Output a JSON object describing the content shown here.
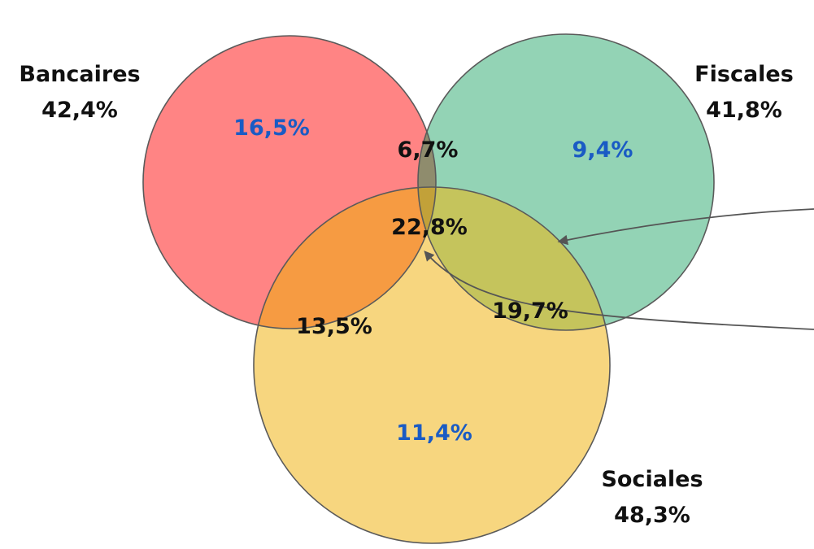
{
  "sets": {
    "bancaires": {
      "name": "Bancaires",
      "total": "42,4%"
    },
    "fiscales": {
      "name": "Fiscales",
      "total": "41,8%"
    },
    "sociales": {
      "name": "Sociales",
      "total": "48,3%"
    }
  },
  "regions": {
    "bancaires_only": "16,5%",
    "fiscales_only": "9,4%",
    "sociales_only": "11,4%",
    "bancaires_fiscales": "6,7%",
    "bancaires_sociales": "13,5%",
    "fiscales_sociales": "19,7%",
    "all_three": "22,8%"
  },
  "colors": {
    "bancaires": "#ff8484",
    "fiscales": "#93d3b5",
    "sociales": "#f7d67f",
    "bancaires_fiscales": "#8f8c6d",
    "bancaires_sociales": "#f69b42",
    "fiscales_sociales": "#c5c45c",
    "all_three": "#c2a139",
    "exclusive_label": "#1a5bc4",
    "shared_label": "#111111",
    "arrow": "#555555"
  }
}
